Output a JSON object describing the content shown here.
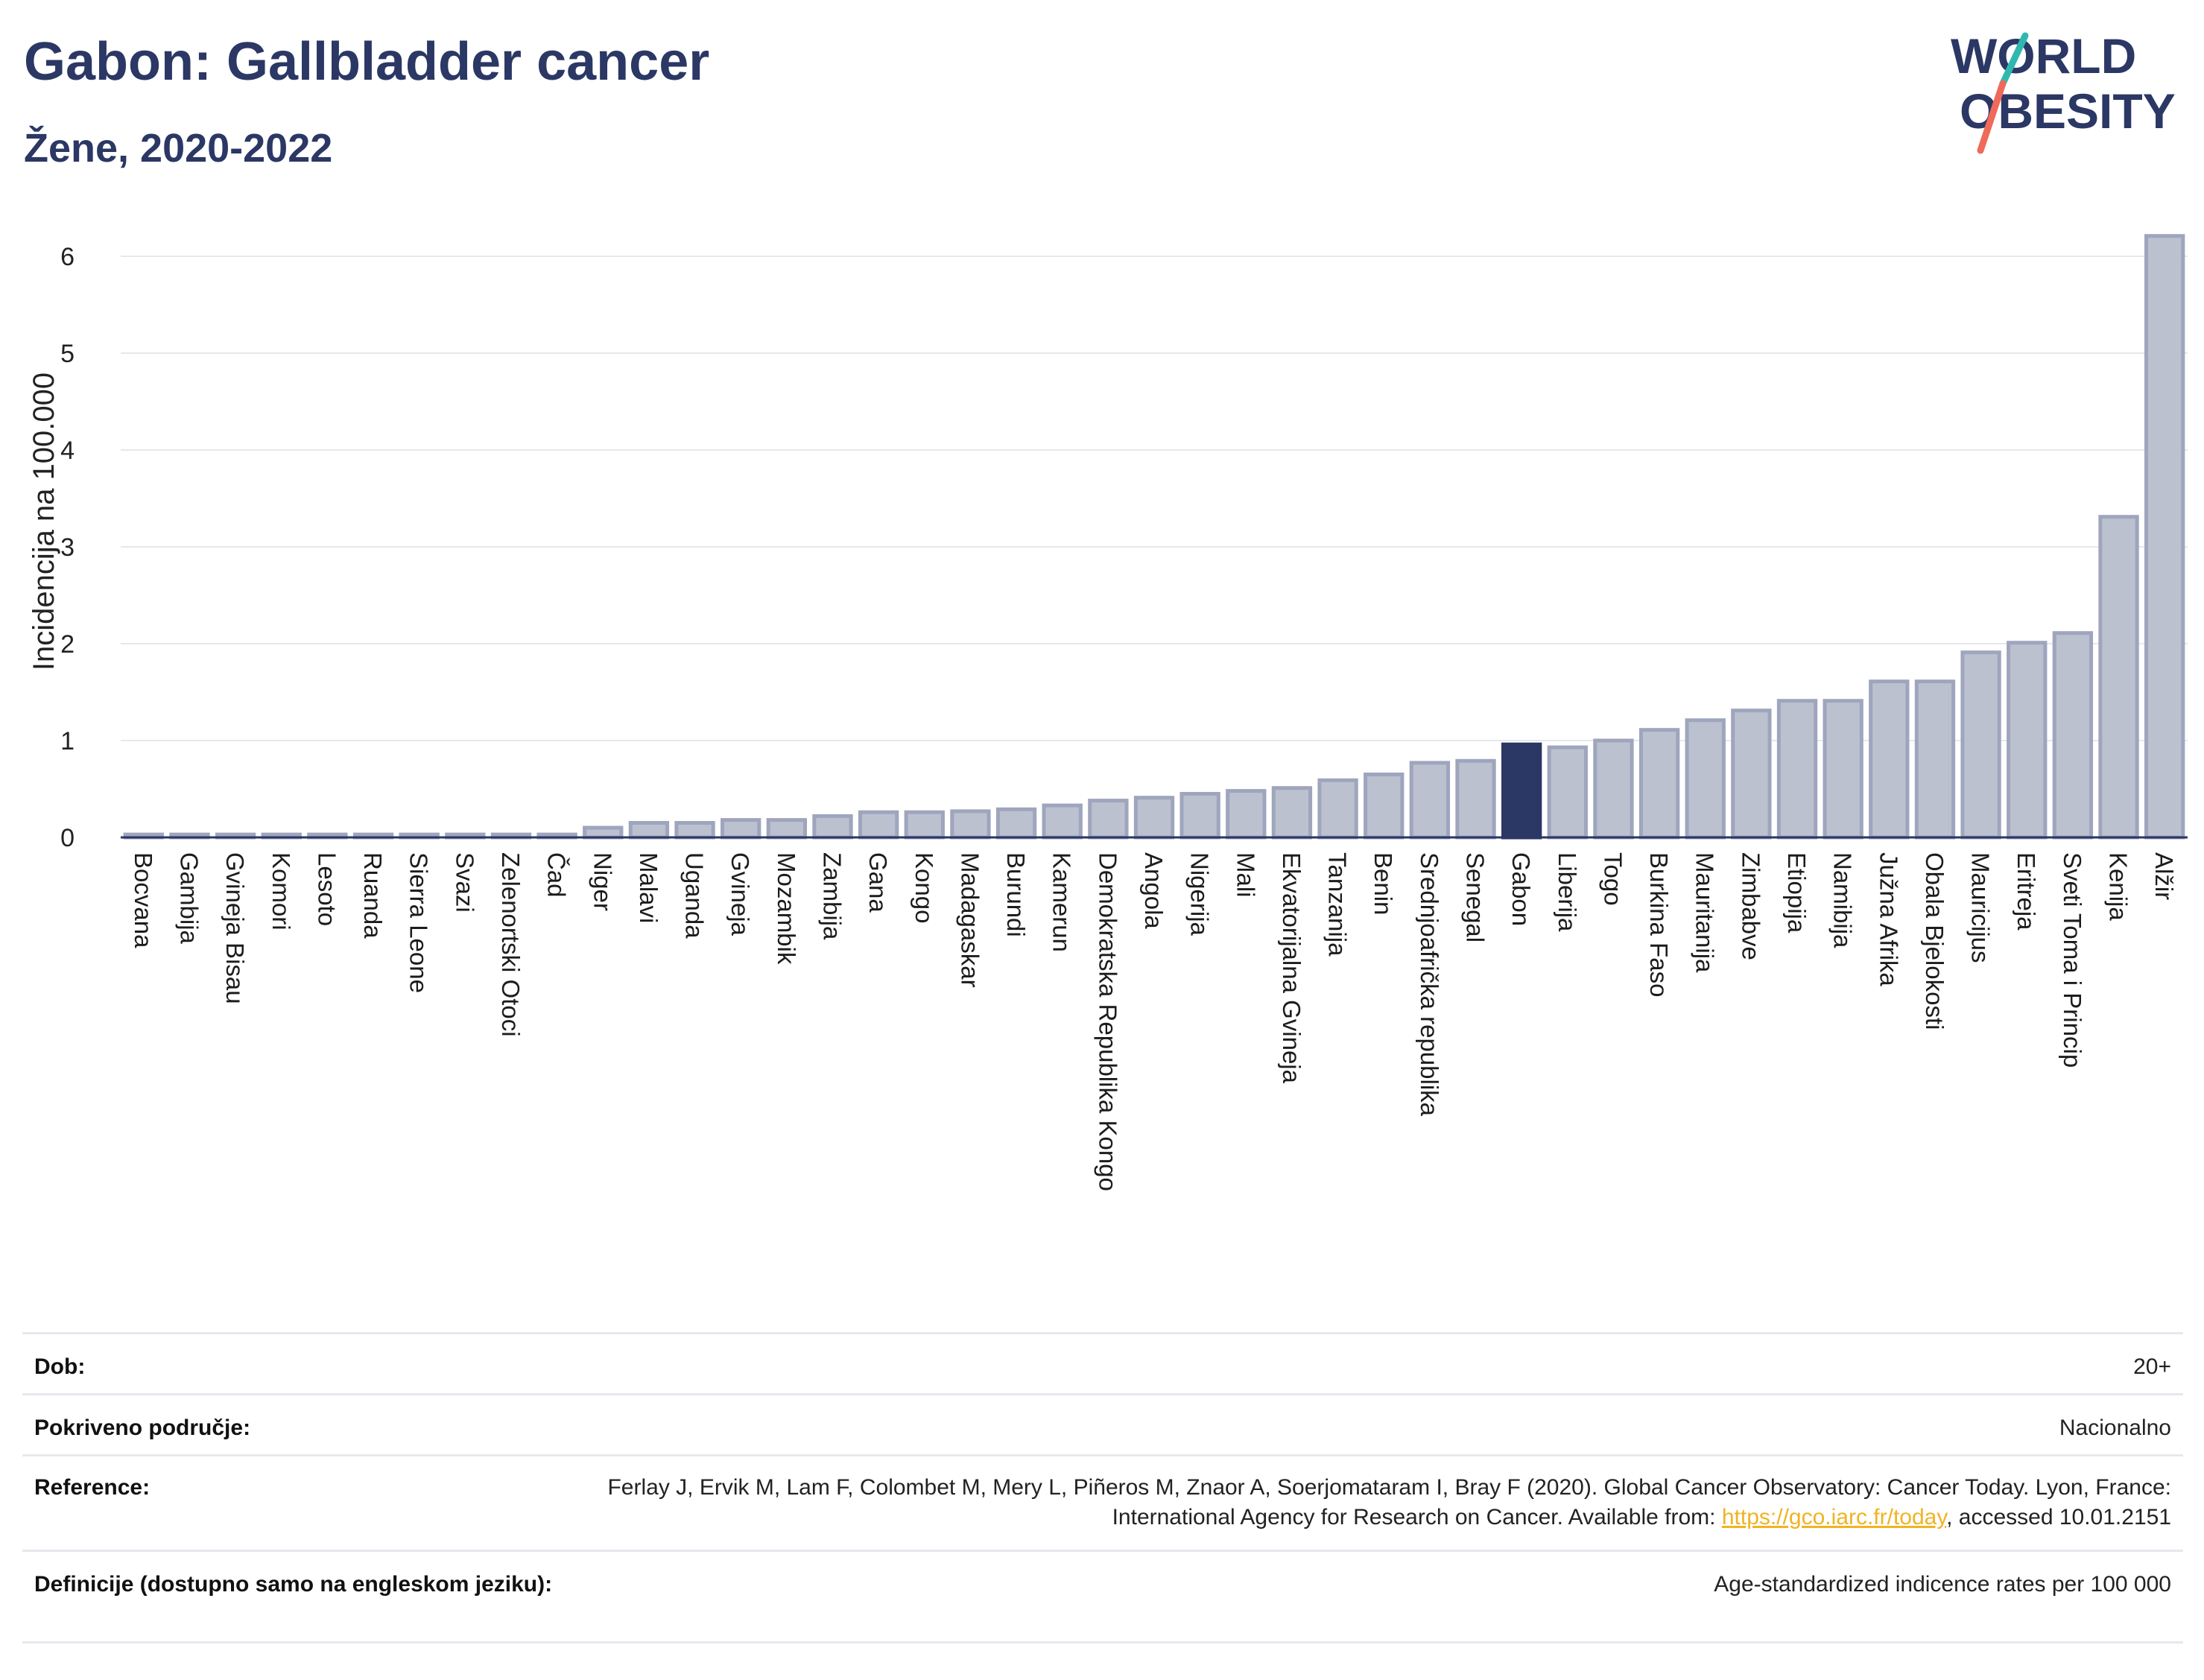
{
  "header": {
    "title": "Gabon: Gallbladder cancer",
    "subtitle": "Žene, 2020-2022"
  },
  "logo": {
    "line1": "WORLD",
    "line2": "OBESITY"
  },
  "colors": {
    "highlight": "#2b3764",
    "bar_fill": "#bcc1d0",
    "bar_stroke": "#9ea5bd",
    "grid": "#e6e8ee",
    "title": "#2b3764",
    "logo_teal": "#2fb8b0",
    "logo_coral": "#ef6a5a"
  },
  "chart_data": {
    "type": "bar",
    "ylabel": "Incidencija na 100.000",
    "xlabel": "",
    "ylim": [
      0,
      6.5
    ],
    "yticks": [
      0,
      1,
      2,
      3,
      4,
      5,
      6
    ],
    "grid": true,
    "highlight": "Gabon",
    "categories": [
      "Bocvana",
      "Gambija",
      "Gvineja Bisau",
      "Komori",
      "Lesoto",
      "Ruanda",
      "Sierra Leone",
      "Svazi",
      "Zelenortski Otoci",
      "Čad",
      "Niger",
      "Malavi",
      "Uganda",
      "Gvineja",
      "Mozambik",
      "Zambija",
      "Gana",
      "Kongo",
      "Madagaskar",
      "Burundi",
      "Kamerun",
      "Demokratska Republika Kongo",
      "Angola",
      "Nigerija",
      "Mali",
      "Ekvatorijalna Gvineja",
      "Tanzanija",
      "Benin",
      "Srednjoafrička republika",
      "Senegal",
      "Gabon",
      "Liberija",
      "Togo",
      "Burkina Faso",
      "Mauritanija",
      "Zimbabve",
      "Etiopija",
      "Namibija",
      "Južna Afrika",
      "Obala Bjelokosti",
      "Mauricijus",
      "Eritreja",
      "Sveti Toma i Princip",
      "Kenija",
      "Alžir"
    ],
    "values": [
      0.03,
      0.03,
      0.03,
      0.03,
      0.03,
      0.03,
      0.03,
      0.03,
      0.03,
      0.03,
      0.1,
      0.15,
      0.15,
      0.18,
      0.18,
      0.22,
      0.26,
      0.26,
      0.27,
      0.29,
      0.33,
      0.38,
      0.41,
      0.45,
      0.48,
      0.51,
      0.59,
      0.65,
      0.77,
      0.79,
      0.96,
      0.93,
      1.0,
      1.11,
      1.21,
      1.31,
      1.41,
      1.41,
      1.61,
      1.61,
      1.91,
      2.01,
      2.11,
      3.31,
      6.21
    ]
  },
  "meta": {
    "age_label": "Dob:",
    "age_value": "20+",
    "coverage_label": "Pokriveno područje:",
    "coverage_value": "Nacionalno",
    "reference_label": "Reference:",
    "reference_text_1": "Ferlay J, Ervik M, Lam F, Colombet M, Mery L, Piñeros M, Znaor A, Soerjomataram I, Bray F (2020). Global Cancer Observatory: Cancer Today. Lyon, France: International Agency for Research on Cancer. Available from:",
    "reference_link": "https://gco.iarc.fr/today",
    "reference_text_2": ", accessed 10.01.2151",
    "definitions_label": "Definicije (dostupno samo na engleskom jeziku):",
    "definitions_value": "Age-standardized indicence rates per 100 000"
  }
}
